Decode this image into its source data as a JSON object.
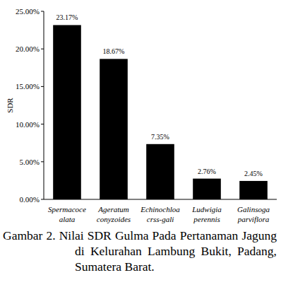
{
  "chart_data": {
    "type": "bar",
    "title": "Gambar 2. Nilai SDR Gulma Pada Pertanaman Jagung di Kelurahan Lambung Bukit, Padang, Sumatera Barat.",
    "y_label": "SDR",
    "categories": [
      "Spermacoce alata",
      "Ageratum conyzoides",
      "Echinochloa crss-gali",
      "Ludwigia perennis",
      "Galinsoga parviflora"
    ],
    "values": [
      23.17,
      18.67,
      7.35,
      2.76,
      2.45
    ],
    "value_labels": [
      "23.17%",
      "18.67%",
      "7.35%",
      "2.76%",
      "2.45%"
    ],
    "color": "#000000",
    "ylim": [
      0,
      25
    ],
    "yticks": [
      {
        "value": 0,
        "label": "0.00%"
      },
      {
        "value": 5,
        "label": "5.00%"
      },
      {
        "value": 10,
        "label": "10.00%"
      },
      {
        "value": 15,
        "label": "15.00%"
      },
      {
        "value": 20,
        "label": "20.00%"
      },
      {
        "value": 25,
        "label": "25.00%"
      }
    ],
    "grid": false,
    "data_labels": true
  }
}
